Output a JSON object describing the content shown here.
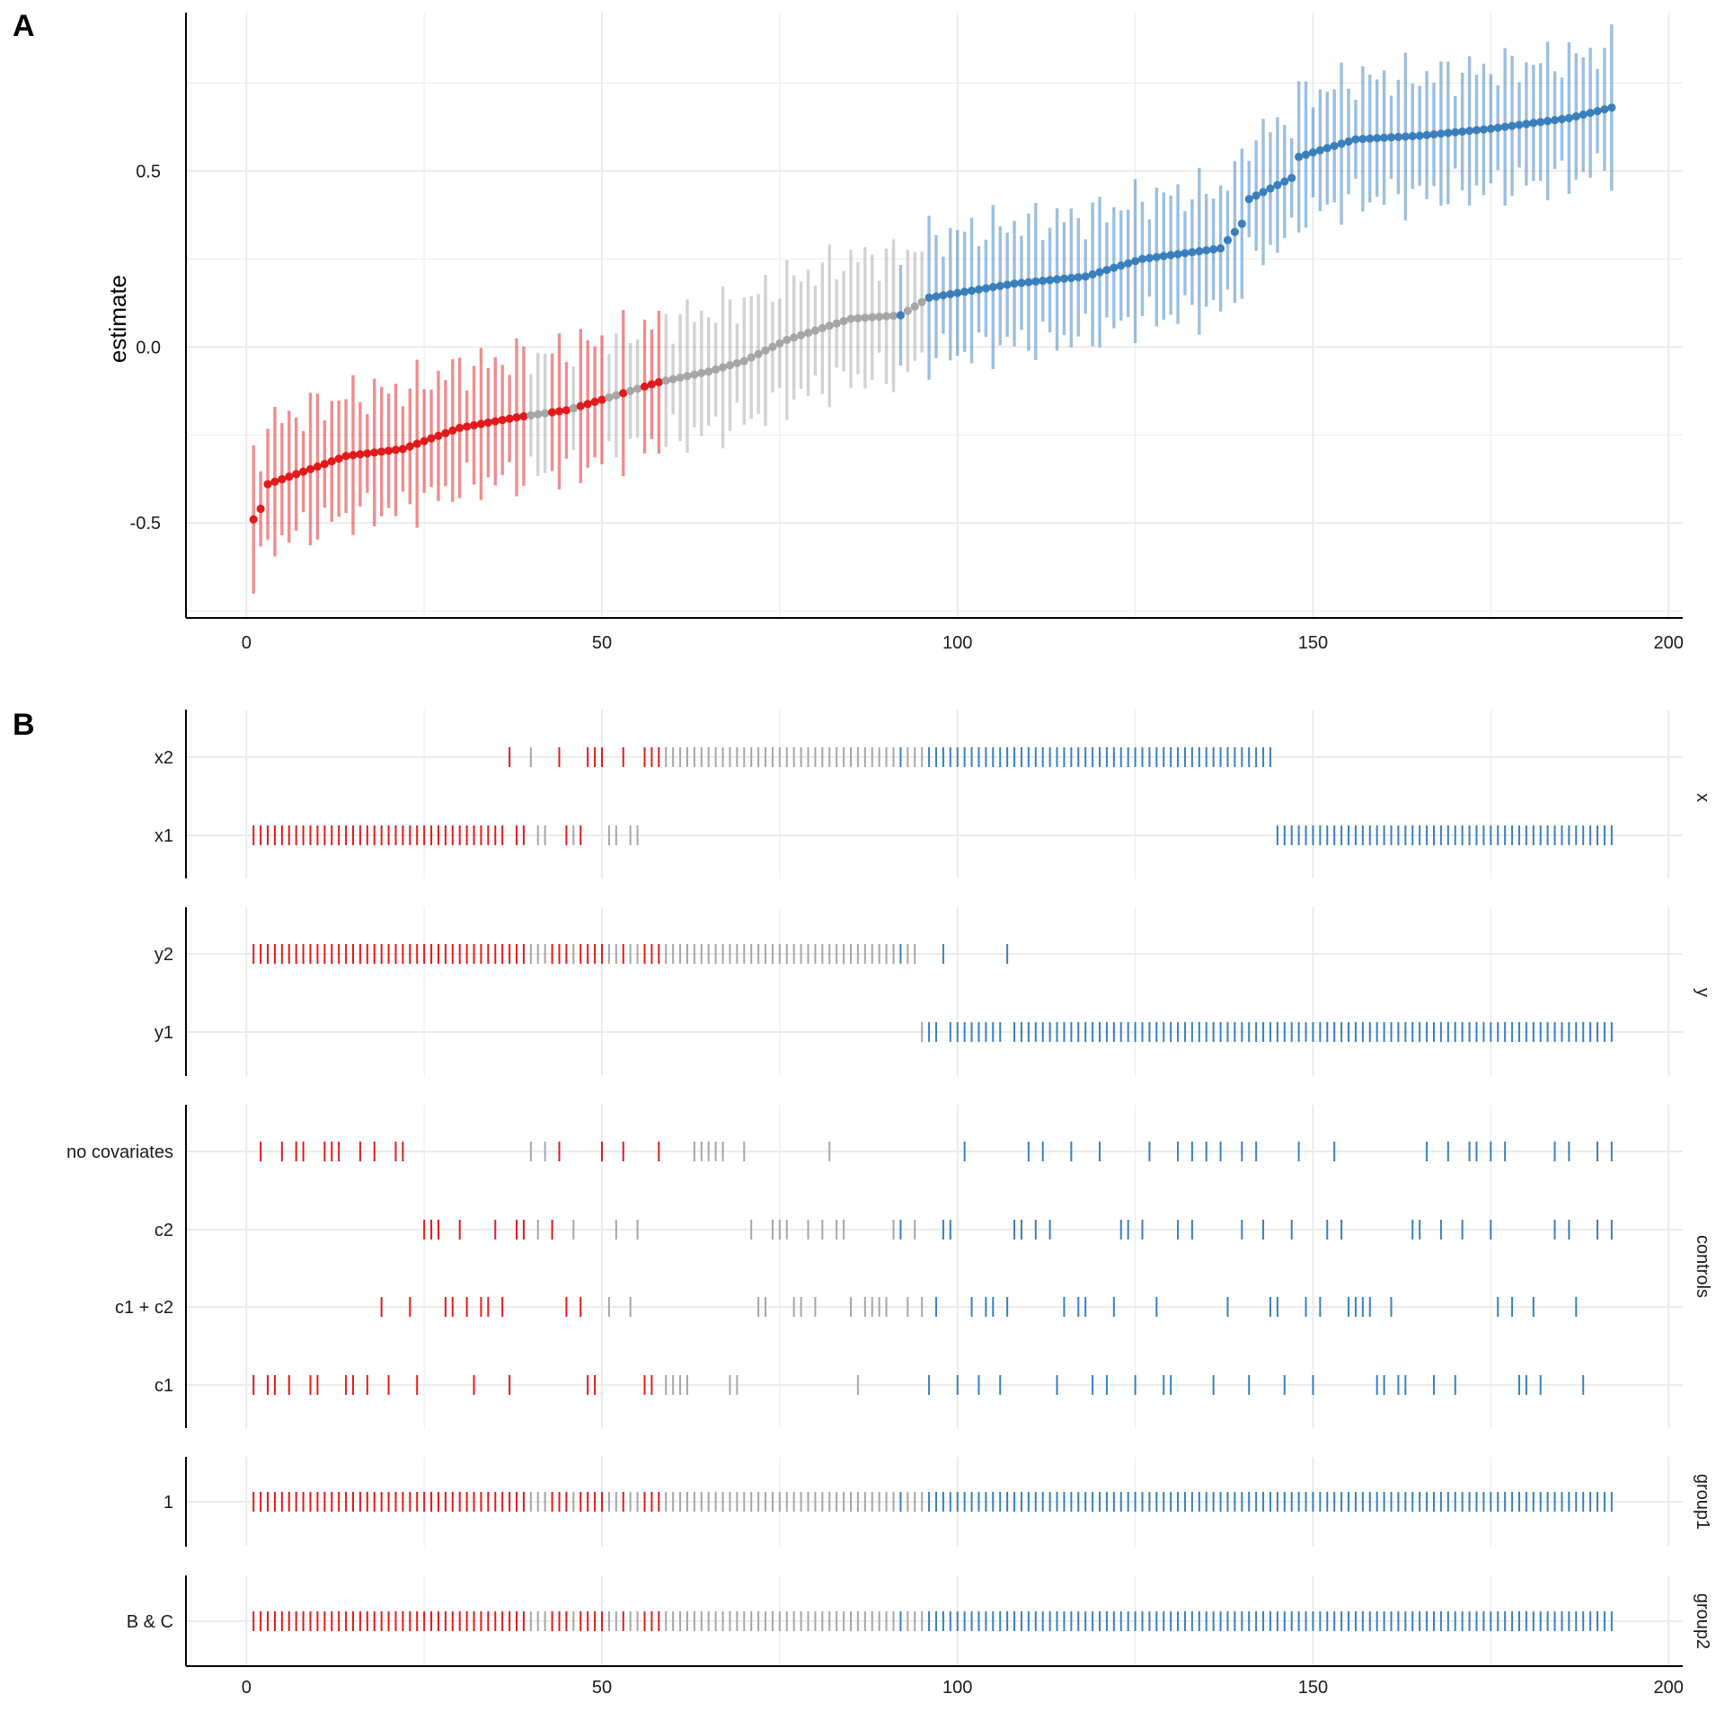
{
  "panels": {
    "a_letter": "A",
    "b_letter": "B"
  },
  "colors": {
    "negative": "#e31a1c",
    "neutral": "#a6a6a6",
    "positive": "#3a7fbd",
    "grid": "#ebebeb",
    "axis": "#000000"
  },
  "chart_data": [
    {
      "type": "scatter",
      "title": "",
      "xlabel": "",
      "ylabel": "estimate",
      "xlim": [
        -8.5,
        202
      ],
      "ylim": [
        -0.77,
        0.95
      ],
      "x_ticks": [
        0,
        50,
        100,
        150,
        200
      ],
      "y_ticks": [
        -0.5,
        0.0,
        0.5
      ],
      "y_tick_labels": [
        "-0.5",
        "0.0",
        "0.5"
      ],
      "grid": true,
      "error_bars": "vertical interval around each estimate",
      "categories_by_color": [
        "negative",
        "neutral",
        "positive"
      ],
      "n": 192,
      "estimate_anchors": [
        [
          1,
          -0.49
        ],
        [
          2,
          -0.46
        ],
        [
          3,
          -0.39
        ],
        [
          10,
          -0.34
        ],
        [
          14,
          -0.31
        ],
        [
          22,
          -0.29
        ],
        [
          30,
          -0.23
        ],
        [
          38,
          -0.2
        ],
        [
          45,
          -0.18
        ],
        [
          50,
          -0.15
        ],
        [
          58,
          -0.1
        ],
        [
          65,
          -0.07
        ],
        [
          70,
          -0.04
        ],
        [
          76,
          0.02
        ],
        [
          85,
          0.08
        ],
        [
          92,
          0.09
        ],
        [
          96,
          0.14
        ],
        [
          108,
          0.18
        ],
        [
          118,
          0.2
        ],
        [
          126,
          0.25
        ],
        [
          137,
          0.28
        ],
        [
          140,
          0.35
        ],
        [
          141,
          0.42
        ],
        [
          147,
          0.48
        ],
        [
          148,
          0.54
        ],
        [
          156,
          0.59
        ],
        [
          165,
          0.6
        ],
        [
          175,
          0.62
        ],
        [
          186,
          0.65
        ],
        [
          192,
          0.68
        ]
      ],
      "color_segments": [
        {
          "from": 1,
          "to": 39,
          "category": "negative"
        },
        {
          "from": 40,
          "to": 42,
          "category": "neutral"
        },
        {
          "from": 43,
          "to": 45,
          "category": "negative"
        },
        {
          "from": 46,
          "to": 46,
          "category": "neutral"
        },
        {
          "from": 47,
          "to": 50,
          "category": "negative"
        },
        {
          "from": 51,
          "to": 52,
          "category": "neutral"
        },
        {
          "from": 53,
          "to": 53,
          "category": "negative"
        },
        {
          "from": 54,
          "to": 55,
          "category": "neutral"
        },
        {
          "from": 56,
          "to": 58,
          "category": "negative"
        },
        {
          "from": 59,
          "to": 91,
          "category": "neutral"
        },
        {
          "from": 92,
          "to": 92,
          "category": "positive"
        },
        {
          "from": 93,
          "to": 95,
          "category": "neutral"
        },
        {
          "from": 96,
          "to": 192,
          "category": "positive"
        }
      ]
    },
    {
      "type": "specification-curve-indicators",
      "title": "",
      "xlabel": "",
      "xlim": [
        -8.5,
        202
      ],
      "x_ticks": [
        0,
        50,
        100,
        150,
        200
      ],
      "facets": [
        {
          "name": "x",
          "rows": [
            {
              "label": "x2",
              "specs": [
                37,
                40,
                44,
                48,
                49,
                50,
                53,
                56,
                57,
                58,
                59,
                60,
                61,
                62,
                63,
                64,
                65,
                66,
                67,
                68,
                69,
                70,
                71,
                72,
                73,
                74,
                75,
                76,
                77,
                78,
                79,
                80,
                81,
                82,
                83,
                84,
                85,
                86,
                87,
                88,
                89,
                90,
                91,
                92,
                93,
                94,
                95,
                96,
                97,
                98,
                99,
                100,
                101,
                102,
                103,
                104,
                105,
                106,
                107,
                108,
                109,
                110,
                111,
                112,
                113,
                114,
                115,
                116,
                117,
                118,
                119,
                120,
                121,
                122,
                123,
                124,
                125,
                126,
                127,
                128,
                129,
                130,
                131,
                132,
                133,
                134,
                135,
                136,
                137,
                138,
                139,
                140,
                141,
                142,
                143,
                144
              ]
            },
            {
              "label": "x1",
              "specs": [
                1,
                2,
                3,
                4,
                5,
                6,
                7,
                8,
                9,
                10,
                11,
                12,
                13,
                14,
                15,
                16,
                17,
                18,
                19,
                20,
                21,
                22,
                23,
                24,
                25,
                26,
                27,
                28,
                29,
                30,
                31,
                32,
                33,
                34,
                35,
                36,
                38,
                39,
                41,
                42,
                45,
                46,
                47,
                51,
                52,
                54,
                55,
                145,
                146,
                147,
                148,
                149,
                150,
                151,
                152,
                153,
                154,
                155,
                156,
                157,
                158,
                159,
                160,
                161,
                162,
                163,
                164,
                165,
                166,
                167,
                168,
                169,
                170,
                171,
                172,
                173,
                174,
                175,
                176,
                177,
                178,
                179,
                180,
                181,
                182,
                183,
                184,
                185,
                186,
                187,
                188,
                189,
                190,
                191,
                192
              ]
            }
          ]
        },
        {
          "name": "y",
          "rows": [
            {
              "label": "y2",
              "specs": [
                1,
                2,
                3,
                4,
                5,
                6,
                7,
                8,
                9,
                10,
                11,
                12,
                13,
                14,
                15,
                16,
                17,
                18,
                19,
                20,
                21,
                22,
                23,
                24,
                25,
                26,
                27,
                28,
                29,
                30,
                31,
                32,
                33,
                34,
                35,
                36,
                37,
                38,
                39,
                40,
                41,
                42,
                43,
                44,
                45,
                46,
                47,
                48,
                49,
                50,
                51,
                52,
                53,
                54,
                55,
                56,
                57,
                58,
                59,
                60,
                61,
                62,
                63,
                64,
                65,
                66,
                67,
                68,
                69,
                70,
                71,
                72,
                73,
                74,
                75,
                76,
                77,
                78,
                79,
                80,
                81,
                82,
                83,
                84,
                85,
                86,
                87,
                88,
                89,
                90,
                91,
                92,
                93,
                94,
                98,
                107
              ]
            },
            {
              "label": "y1",
              "specs": [
                95,
                96,
                97,
                99,
                100,
                101,
                102,
                103,
                104,
                105,
                106,
                108,
                109,
                110,
                111,
                112,
                113,
                114,
                115,
                116,
                117,
                118,
                119,
                120,
                121,
                122,
                123,
                124,
                125,
                126,
                127,
                128,
                129,
                130,
                131,
                132,
                133,
                134,
                135,
                136,
                137,
                138,
                139,
                140,
                141,
                142,
                143,
                144,
                145,
                146,
                147,
                148,
                149,
                150,
                151,
                152,
                153,
                154,
                155,
                156,
                157,
                158,
                159,
                160,
                161,
                162,
                163,
                164,
                165,
                166,
                167,
                168,
                169,
                170,
                171,
                172,
                173,
                174,
                175,
                176,
                177,
                178,
                179,
                180,
                181,
                182,
                183,
                184,
                185,
                186,
                187,
                188,
                189,
                190,
                191,
                192
              ]
            }
          ]
        },
        {
          "name": "controls",
          "rows": [
            {
              "label": "no covariates",
              "specs": [
                2,
                5,
                7,
                8,
                11,
                12,
                13,
                16,
                18,
                21,
                22,
                40,
                42,
                44,
                50,
                53,
                58,
                63,
                64,
                65,
                66,
                67,
                70,
                82,
                101,
                110,
                112,
                116,
                120,
                127,
                131,
                133,
                135,
                137,
                140,
                142,
                148,
                153,
                166,
                169,
                172,
                173,
                175,
                177,
                184,
                186,
                190,
                192
              ]
            },
            {
              "label": "c2",
              "specs": [
                25,
                26,
                27,
                30,
                35,
                38,
                39,
                41,
                43,
                46,
                52,
                55,
                71,
                74,
                75,
                76,
                79,
                81,
                83,
                84,
                91,
                92,
                94,
                98,
                99,
                108,
                109,
                111,
                113,
                123,
                124,
                126,
                131,
                133,
                140,
                143,
                147,
                152,
                154,
                164,
                165,
                168,
                171,
                175,
                184,
                186,
                190,
                192
              ]
            },
            {
              "label": "c1 + c2",
              "specs": [
                19,
                23,
                28,
                29,
                31,
                33,
                34,
                36,
                45,
                47,
                51,
                54,
                72,
                73,
                77,
                78,
                80,
                85,
                87,
                88,
                89,
                90,
                93,
                95,
                97,
                102,
                104,
                105,
                107,
                115,
                117,
                118,
                122,
                128,
                138,
                144,
                145,
                149,
                151,
                155,
                156,
                157,
                158,
                161,
                176,
                178,
                181,
                187
              ]
            },
            {
              "label": "c1",
              "specs": [
                1,
                3,
                4,
                6,
                9,
                10,
                14,
                15,
                17,
                20,
                24,
                32,
                37,
                48,
                49,
                56,
                57,
                59,
                60,
                61,
                62,
                68,
                69,
                86,
                96,
                100,
                103,
                106,
                114,
                119,
                121,
                125,
                129,
                130,
                136,
                141,
                146,
                150,
                159,
                160,
                162,
                163,
                167,
                170,
                179,
                180,
                182,
                188
              ]
            }
          ]
        },
        {
          "name": "group1",
          "rows": [
            {
              "label": "1",
              "specs": "all"
            }
          ]
        },
        {
          "name": "group2",
          "rows": [
            {
              "label": "B & C",
              "specs": "all"
            }
          ]
        }
      ]
    }
  ]
}
